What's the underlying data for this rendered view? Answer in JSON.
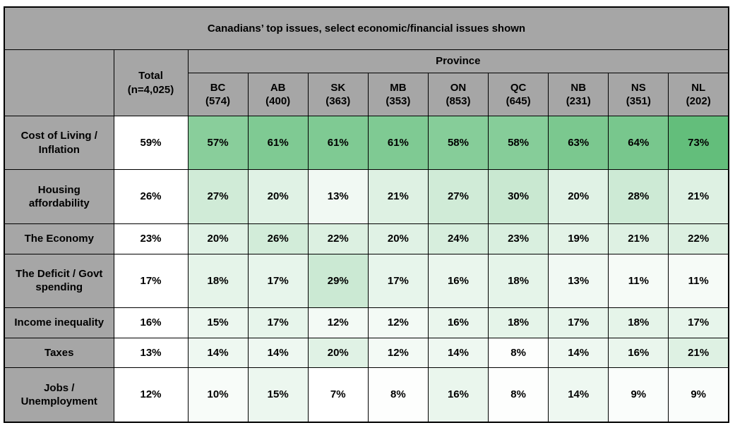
{
  "header": {
    "total_label": "Total",
    "total_n_label": "(n=4,025)",
    "province_label": "Province"
  },
  "colors": {
    "header_bg": "#A6A6A6",
    "border": "#000000",
    "text": "#000000",
    "page_bg": "#FFFFFF"
  },
  "heatmap": {
    "min_value": 7,
    "max_value": 73,
    "min_color": "#FFFFFF",
    "max_color": "#63BE7B"
  },
  "chart_data": {
    "type": "heatmap",
    "title": "Canadians’ top issues, select economic/financial issues shown",
    "column_group_label": "Province",
    "total_column": {
      "label": "Total",
      "n_label": "(n=4,025)"
    },
    "value_suffix": "%",
    "columns": [
      {
        "label": "BC",
        "n_label": "(574)"
      },
      {
        "label": "AB",
        "n_label": "(400)"
      },
      {
        "label": "SK",
        "n_label": "(363)"
      },
      {
        "label": "MB",
        "n_label": "(353)"
      },
      {
        "label": "ON",
        "n_label": "(853)"
      },
      {
        "label": "QC",
        "n_label": "(645)"
      },
      {
        "label": "NB",
        "n_label": "(231)"
      },
      {
        "label": "NS",
        "n_label": "(351)"
      },
      {
        "label": "NL",
        "n_label": "(202)"
      }
    ],
    "rows": [
      {
        "label": "Cost of Living / Inflation",
        "total": 59,
        "values": [
          57,
          61,
          61,
          61,
          58,
          58,
          63,
          64,
          73
        ]
      },
      {
        "label": "Housing affordability",
        "total": 26,
        "values": [
          27,
          20,
          13,
          21,
          27,
          30,
          20,
          28,
          21
        ]
      },
      {
        "label": "The Economy",
        "total": 23,
        "values": [
          20,
          26,
          22,
          20,
          24,
          23,
          19,
          21,
          22
        ]
      },
      {
        "label": "The Deficit / Govt spending",
        "total": 17,
        "values": [
          18,
          17,
          29,
          17,
          16,
          18,
          13,
          11,
          11
        ]
      },
      {
        "label": "Income inequality",
        "total": 16,
        "values": [
          15,
          17,
          12,
          12,
          16,
          18,
          17,
          18,
          17
        ]
      },
      {
        "label": "Taxes",
        "total": 13,
        "values": [
          14,
          14,
          20,
          12,
          14,
          8,
          14,
          16,
          21
        ]
      },
      {
        "label": "Jobs / Unemployment",
        "total": 12,
        "values": [
          10,
          15,
          7,
          8,
          16,
          8,
          14,
          9,
          9
        ]
      }
    ]
  }
}
